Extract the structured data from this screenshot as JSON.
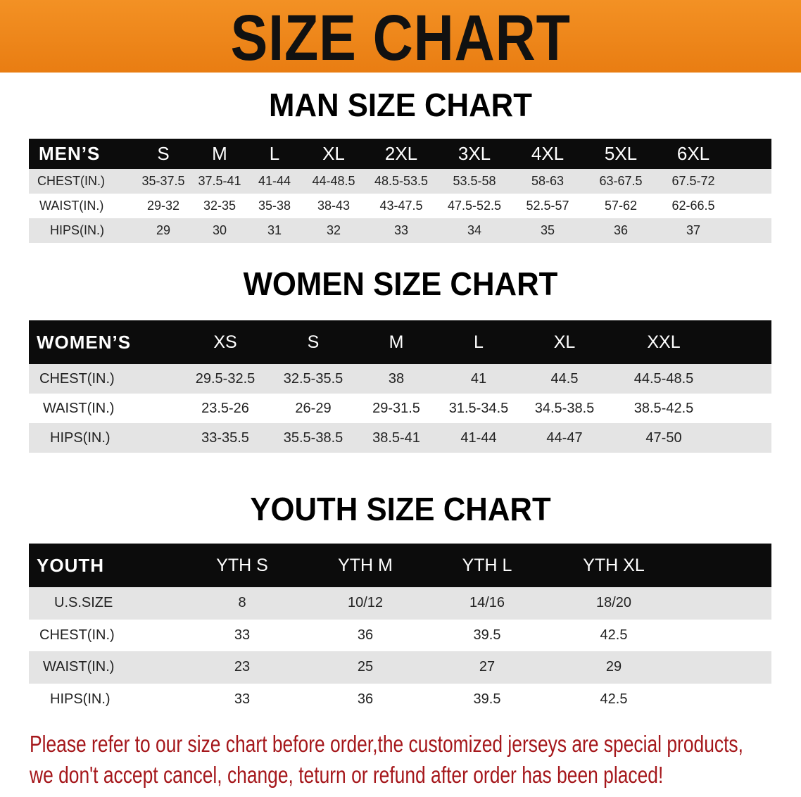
{
  "banner": {
    "title": "SIZE CHART",
    "color": "#ef8a1e"
  },
  "men": {
    "title": "MAN SIZE CHART",
    "header": [
      "MEN’S",
      "S",
      "M",
      "L",
      "XL",
      "2XL",
      "3XL",
      "4XL",
      "5XL",
      "6XL"
    ],
    "rows": [
      [
        "CHEST(IN.)",
        "35-37.5",
        "37.5-41",
        "41-44",
        "44-48.5",
        "48.5-53.5",
        "53.5-58",
        "58-63",
        "63-67.5",
        "67.5-72"
      ],
      [
        "WAIST(IN.)",
        "29-32",
        "32-35",
        "35-38",
        "38-43",
        "43-47.5",
        "47.5-52.5",
        "52.5-57",
        "57-62",
        "62-66.5"
      ],
      [
        "HIPS(IN.)",
        "29",
        "30",
        "31",
        "32",
        "33",
        "34",
        "35",
        "36",
        "37"
      ]
    ]
  },
  "women": {
    "title": "WOMEN SIZE CHART",
    "header": [
      "WOMEN’S",
      "XS",
      "S",
      "M",
      "L",
      "XL",
      "XXL"
    ],
    "rows": [
      [
        "CHEST(IN.)",
        "29.5-32.5",
        "32.5-35.5",
        "38",
        "41",
        "44.5",
        "44.5-48.5"
      ],
      [
        "WAIST(IN.)",
        "23.5-26",
        "26-29",
        "29-31.5",
        "31.5-34.5",
        "34.5-38.5",
        "38.5-42.5"
      ],
      [
        "HIPS(IN.)",
        "33-35.5",
        "35.5-38.5",
        "38.5-41",
        "41-44",
        "44-47",
        "47-50"
      ]
    ]
  },
  "youth": {
    "title": "YOUTH SIZE CHART",
    "header": [
      "YOUTH",
      "YTH S",
      "YTH M",
      "YTH L",
      "YTH XL"
    ],
    "rows": [
      [
        "U.S.SIZE",
        "8",
        "10/12",
        "14/16",
        "18/20"
      ],
      [
        "CHEST(IN.)",
        "33",
        "36",
        "39.5",
        "42.5"
      ],
      [
        "WAIST(IN.)",
        "23",
        "25",
        "27",
        "29"
      ],
      [
        "HIPS(IN.)",
        "33",
        "36",
        "39.5",
        "42.5"
      ]
    ]
  },
  "notice": {
    "line1": "Please refer to our size chart before order,the customized jerseys are special products,",
    "line2": "we don't accept cancel, change, teturn or refund after order has been placed!",
    "color": "#a5171b"
  }
}
